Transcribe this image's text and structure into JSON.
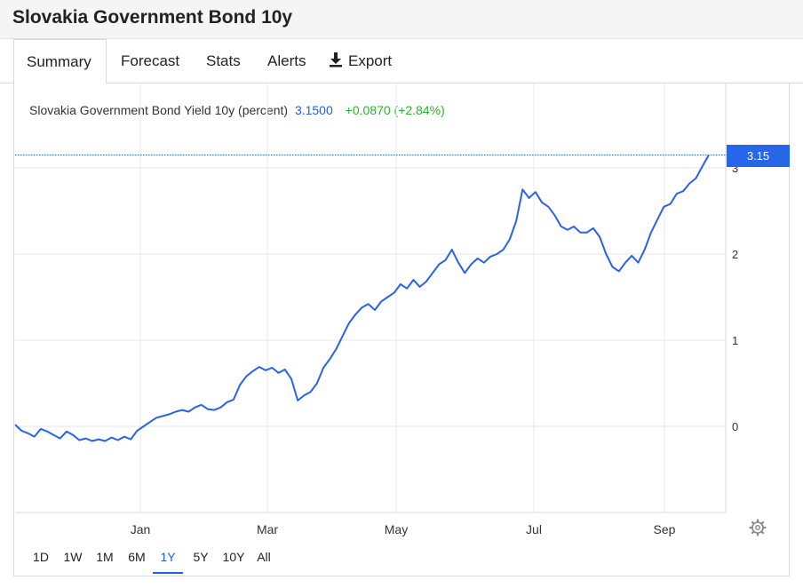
{
  "page": {
    "title": "Slovakia Government Bond 10y"
  },
  "tabs": [
    {
      "label": "Summary",
      "active": true
    },
    {
      "label": "Forecast",
      "active": false
    },
    {
      "label": "Stats",
      "active": false
    },
    {
      "label": "Alerts",
      "active": false
    },
    {
      "label": "Export",
      "active": false,
      "icon": "download-icon"
    }
  ],
  "legend": {
    "series_name": "Slovakia Government Bond Yield 10y (percent)",
    "last_value": "3.1500",
    "change": "+0.0870 (+2.84%)"
  },
  "price_tag": "3.15",
  "ranges": [
    {
      "label": "1D",
      "active": false
    },
    {
      "label": "1W",
      "active": false
    },
    {
      "label": "1M",
      "active": false
    },
    {
      "label": "6M",
      "active": false
    },
    {
      "label": "1Y",
      "active": true
    },
    {
      "label": "5Y",
      "active": false
    },
    {
      "label": "10Y",
      "active": false
    },
    {
      "label": "All",
      "active": false
    }
  ],
  "colors": {
    "line": "#2a62e8",
    "accent": "#1e62e0",
    "positive": "#2ab32a",
    "tag_bg": "#2567e8"
  },
  "icons": {
    "settings": "gear-icon",
    "export": "download-icon"
  },
  "chart_data": {
    "type": "line",
    "title": "",
    "xlabel": "",
    "ylabel": "",
    "x_ticks": [
      "Jan",
      "Mar",
      "May",
      "Jul",
      "Sep"
    ],
    "y_ticks": [
      0,
      1,
      2,
      3
    ],
    "ylim": [
      -1.0,
      4.0
    ],
    "grid": true,
    "last_value": 3.15,
    "series": [
      {
        "values": [
          0.02,
          -0.05,
          -0.08,
          -0.12,
          -0.03,
          -0.06,
          -0.1,
          -0.14,
          -0.06,
          -0.1,
          -0.16,
          -0.14,
          -0.17,
          -0.15,
          -0.17,
          -0.13,
          -0.16,
          -0.12,
          -0.15,
          -0.05,
          0.0,
          0.05,
          0.1,
          0.12,
          0.14,
          0.17,
          0.19,
          0.17,
          0.22,
          0.25,
          0.2,
          0.19,
          0.22,
          0.28,
          0.31,
          0.48,
          0.58,
          0.64,
          0.69,
          0.65,
          0.68,
          0.62,
          0.66,
          0.55,
          0.3,
          0.36,
          0.4,
          0.5,
          0.68,
          0.78,
          0.9,
          1.05,
          1.2,
          1.3,
          1.38,
          1.42,
          1.35,
          1.45,
          1.5,
          1.55,
          1.65,
          1.6,
          1.7,
          1.62,
          1.68,
          1.78,
          1.88,
          1.93,
          2.05,
          1.9,
          1.78,
          1.88,
          1.95,
          1.9,
          1.97,
          2.0,
          2.05,
          2.17,
          2.38,
          2.75,
          2.65,
          2.72,
          2.6,
          2.55,
          2.45,
          2.32,
          2.28,
          2.32,
          2.25,
          2.25,
          2.3,
          2.2,
          2.0,
          1.85,
          1.8,
          1.9,
          1.98,
          1.9,
          2.05,
          2.25,
          2.4,
          2.55,
          2.58,
          2.7,
          2.73,
          2.82,
          2.88,
          3.02,
          3.15
        ]
      }
    ]
  }
}
